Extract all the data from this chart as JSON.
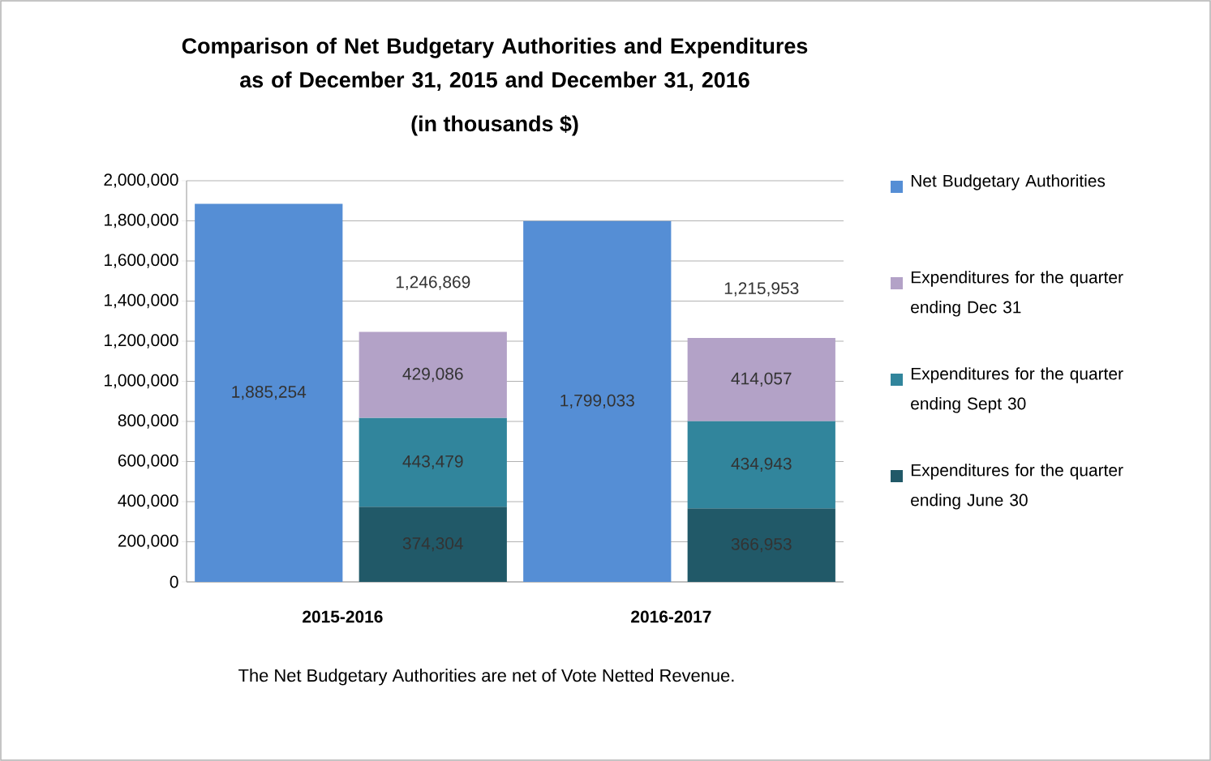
{
  "chart_data": {
    "type": "bar",
    "title": "Comparison of Net Budgetary Authorities and Expenditures as of December 31, 2015 and December 31, 2016",
    "subtitle": "(in thousands $)",
    "categories": [
      "2015-2016",
      null,
      "2016-2017",
      null
    ],
    "stacked": true,
    "series": [
      {
        "name": "Net Budgetary Authorities",
        "color": "#558ed5",
        "values": [
          1885254,
          null,
          1799033,
          null
        ],
        "value_labels": [
          "1,885,254",
          null,
          "1,799,033",
          null
        ]
      },
      {
        "name": "Expenditures for the quarter ending June 30",
        "color": "#215968",
        "values": [
          null,
          374304,
          null,
          366953
        ],
        "value_labels": [
          null,
          "374,304",
          null,
          "366,953"
        ]
      },
      {
        "name": "Expenditures for the quarter ending Sept 30",
        "color": "#31859c",
        "values": [
          null,
          443479,
          null,
          434943
        ],
        "value_labels": [
          null,
          "443,479",
          null,
          "434,943"
        ]
      },
      {
        "name": "Expenditures for the quarter ending Dec 31",
        "color": "#b3a2c7",
        "values": [
          null,
          429086,
          null,
          414057
        ],
        "value_labels": [
          null,
          "429,086",
          null,
          "414,057"
        ]
      }
    ],
    "totals": [
      null,
      "1,246,869",
      null,
      "1,215,953"
    ],
    "ylim": [
      0,
      2000000
    ],
    "yticks": [
      0,
      {
        "value": 200000,
        "label": "200,000"
      },
      {
        "value": 400000,
        "label": "400,000"
      },
      {
        "value": 600000,
        "label": "600,000"
      },
      {
        "value": 800000,
        "label": "800,000"
      },
      {
        "value": 1000000,
        "label": "1,000,000"
      },
      {
        "value": 1200000,
        "label": "1,200,000"
      },
      {
        "value": 1400000,
        "label": "1,400,000"
      },
      {
        "value": 1600000,
        "label": "1,600,000"
      },
      {
        "value": 1800000,
        "label": "1,800,000"
      },
      {
        "value": 2000000,
        "label": "2,000,000"
      }
    ],
    "grid": "y",
    "legend": "right",
    "annotations": [
      "The Net Budgetary Authorities are net of Vote Netted Revenue."
    ]
  }
}
